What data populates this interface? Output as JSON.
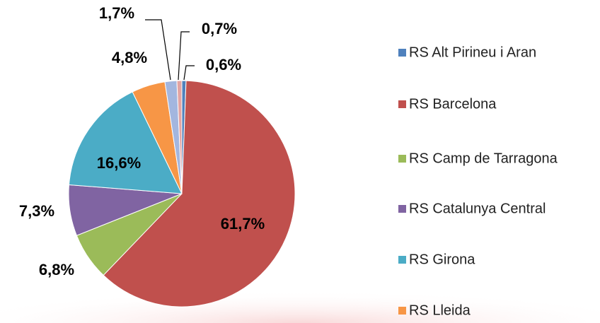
{
  "chart_data": {
    "type": "pie",
    "categories": [
      "RS Alt Pirineu i Aran",
      "RS Barcelona",
      "RS Camp de Tarragona",
      "RS Catalunya Central",
      "RS Girona",
      "RS Lleida",
      null,
      null
    ],
    "values": [
      0.6,
      61.7,
      6.8,
      7.3,
      16.6,
      4.8,
      1.7,
      0.7
    ],
    "value_labels": [
      "0,6%",
      "61,7%",
      "6,8%",
      "7,3%",
      "16,6%",
      "4,8%",
      "1,7%",
      "0,7%"
    ],
    "colors": [
      "#4f81bd",
      "#c0504d",
      "#9bbb59",
      "#8064a2",
      "#4bacc6",
      "#f79646",
      "#a3b6df",
      "#e3a4a3"
    ],
    "legend": "right"
  }
}
